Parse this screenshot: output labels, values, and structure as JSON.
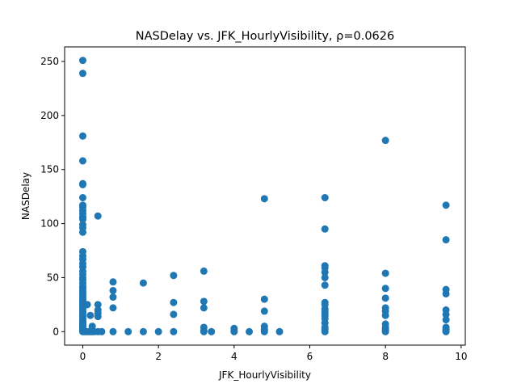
{
  "chart_data": {
    "type": "scatter",
    "title": "NASDelay vs. JFK_HourlyVisibility, ρ=0.0626",
    "xlabel": "JFK_HourlyVisibility",
    "ylabel": "NASDelay",
    "xlim": [
      -0.48,
      10.11
    ],
    "ylim": [
      -12.5,
      263.5
    ],
    "xticks": [
      "0",
      "2",
      "4",
      "6",
      "8",
      "10"
    ],
    "xtick_values": [
      0,
      2,
      4,
      6,
      8,
      10
    ],
    "yticks": [
      "0",
      "50",
      "100",
      "150",
      "200",
      "250"
    ],
    "ytick_values": [
      0,
      50,
      100,
      150,
      200,
      250
    ],
    "grid": false,
    "marker_color": "#1f77b4",
    "x": [
      0,
      0,
      0,
      0,
      0,
      0,
      0,
      0,
      0,
      0,
      0,
      0,
      0,
      0,
      0,
      0,
      0,
      0,
      0,
      0,
      0,
      0,
      0,
      0,
      0,
      0,
      0,
      0,
      0,
      0,
      0,
      0,
      0,
      0,
      0,
      0,
      0,
      0,
      0,
      0,
      0,
      0,
      0,
      0,
      0,
      0,
      0,
      0,
      0,
      0,
      0,
      0,
      0,
      0,
      0,
      0,
      0,
      0,
      0.06,
      0.1,
      0.12,
      0.15,
      0.2,
      0.2,
      0.25,
      0.25,
      0.3,
      0.4,
      0.4,
      0.4,
      0.4,
      0.4,
      0.4,
      0.5,
      0.8,
      0.8,
      0.8,
      0.8,
      0.8,
      1.2,
      1.6,
      1.6,
      2.0,
      2.4,
      2.4,
      2.4,
      2.4,
      3.2,
      3.2,
      3.2,
      3.2,
      3.2,
      3.2,
      3.4,
      4.0,
      4.0,
      4.0,
      4.4,
      4.8,
      4.8,
      4.8,
      4.8,
      4.8,
      4.8,
      4.8,
      5.2,
      6.4,
      6.4,
      6.4,
      6.4,
      6.4,
      6.4,
      6.4,
      6.4,
      6.4,
      6.4,
      6.4,
      6.4,
      6.4,
      6.4,
      6.4,
      6.4,
      6.4,
      6.4,
      8.0,
      8.0,
      8.0,
      8.0,
      8.0,
      8.0,
      8.0,
      8.0,
      8.0,
      8.0,
      8.0,
      8.0,
      9.6,
      9.6,
      9.6,
      9.6,
      9.6,
      9.6,
      9.6,
      9.6,
      9.6,
      9.6,
      9.6,
      9.6
    ],
    "y": [
      251,
      239,
      181,
      158,
      137,
      136,
      124,
      117,
      115,
      112,
      109,
      106,
      104,
      99,
      96,
      92,
      74,
      70,
      67,
      63,
      60,
      56,
      53,
      50,
      48,
      45,
      42,
      40,
      38,
      36,
      34,
      32,
      30,
      28,
      26,
      24,
      22,
      20,
      18,
      16,
      14,
      12,
      10,
      9,
      8,
      7,
      6,
      5,
      4,
      3,
      2,
      1,
      0.5,
      0,
      18,
      22,
      27,
      3,
      0,
      0,
      25,
      0,
      0,
      15,
      5,
      0,
      0,
      107,
      25,
      20,
      17,
      14,
      0,
      0,
      46,
      38,
      32,
      22,
      0,
      0,
      45,
      0,
      0,
      52,
      27,
      16,
      0,
      56,
      28,
      22,
      4,
      1,
      0,
      0,
      3,
      1,
      0,
      0,
      123,
      30,
      19,
      5,
      2,
      1,
      0,
      0,
      124,
      95,
      61,
      59,
      55,
      50,
      43,
      27,
      25,
      21,
      19,
      17,
      15,
      12,
      8,
      4,
      2,
      0,
      177,
      54,
      40,
      31,
      22,
      19,
      15,
      7,
      4,
      2,
      1,
      0,
      117,
      85,
      39,
      35,
      20,
      16,
      11,
      4,
      2,
      1,
      0.5,
      0
    ]
  }
}
